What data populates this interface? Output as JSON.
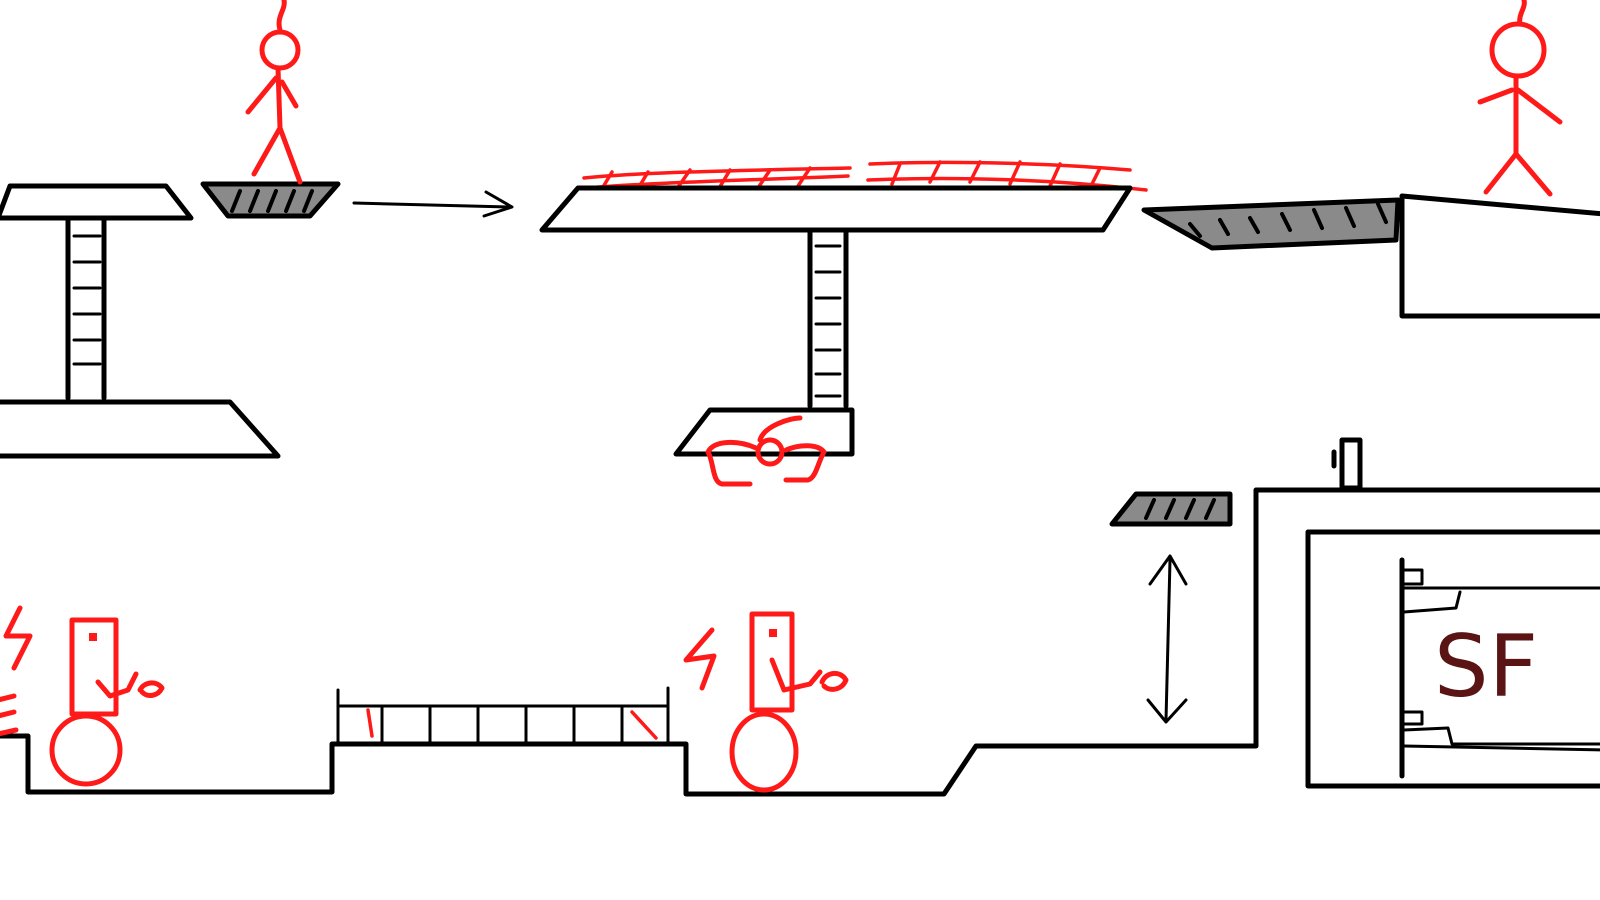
{
  "scene": {
    "type": "hand-drawn platformer level sketch",
    "colors": {
      "ink": "#000000",
      "hazard": "#ff1a1a",
      "moving_platform": "#8a8a8a",
      "sign_text": "#5a1414"
    }
  },
  "elements": {
    "stick_figures": [
      "hanging-stick-figure",
      "hanging-stick-figure"
    ],
    "arrows": [
      "right-arrow-icon",
      "up-down-arrow-icon"
    ],
    "hazards": [
      "spiked-ceiling",
      "enemy-spider",
      "tesla-coil-enemy",
      "tesla-coil-enemy"
    ]
  },
  "sign": {
    "label": "SF"
  }
}
